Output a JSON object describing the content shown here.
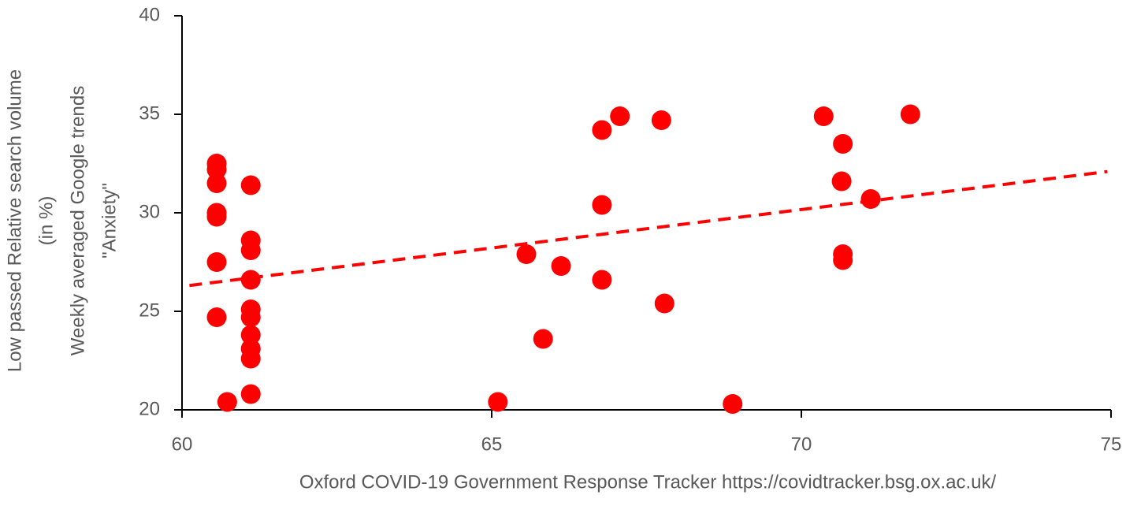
{
  "chart_data": {
    "type": "scatter",
    "xlabel": "Oxford COVID-19 Government Response Tracker https://covidtracker.bsg.ox.ac.uk/",
    "ylabel": [
      "Low passed Relative search volume",
      "(in %)",
      "Weekly averaged Google trends",
      "\"Anxiety\""
    ],
    "x": [
      60.56,
      60.56,
      60.56,
      60.56,
      60.56,
      60.56,
      60.56,
      60.73,
      61.11,
      61.11,
      61.11,
      61.11,
      61.11,
      61.11,
      61.11,
      61.11,
      61.11,
      61.11,
      65.1,
      65.56,
      65.83,
      66.12,
      66.78,
      66.78,
      66.78,
      67.07,
      67.74,
      67.79,
      68.89,
      70.36,
      70.65,
      70.67,
      70.67,
      70.67,
      71.12,
      71.76
    ],
    "series": [
      {
        "color": "#ff0000",
        "values": [
          32.5,
          32.2,
          31.5,
          30.0,
          29.8,
          27.5,
          24.7,
          20.4,
          31.4,
          28.6,
          28.1,
          26.6,
          25.1,
          24.7,
          23.8,
          23.1,
          22.6,
          20.8,
          20.4,
          27.9,
          23.6,
          27.3,
          34.2,
          30.4,
          26.6,
          34.9,
          34.7,
          25.4,
          20.3,
          34.9,
          31.6,
          33.5,
          27.9,
          27.6,
          30.7,
          35.0
        ]
      }
    ],
    "trendline": true,
    "xlim": [
      60,
      75
    ],
    "xticks": [
      60,
      65,
      70,
      75
    ],
    "ylim": [
      20,
      40
    ],
    "yticks": [
      20,
      25,
      30,
      35,
      40
    ]
  }
}
